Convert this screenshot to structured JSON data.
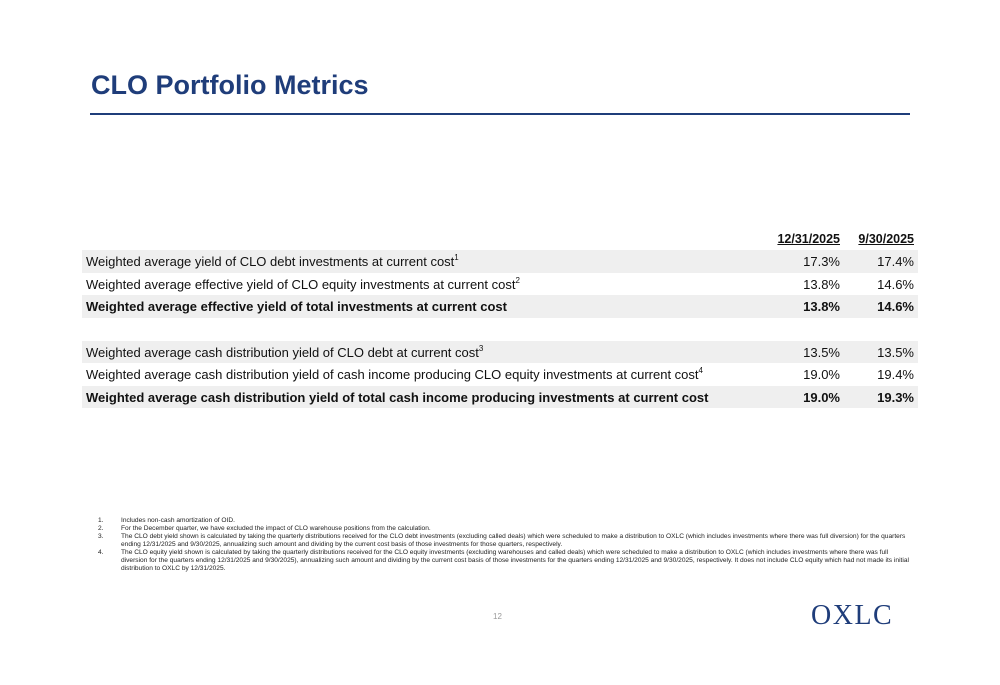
{
  "slide": {
    "title": "CLO Portfolio Metrics",
    "page_number": "12",
    "logo_text": "OXLC",
    "brand_color": "#1f3d7a"
  },
  "table": {
    "columns": [
      "12/31/2025",
      "9/30/2025"
    ],
    "group1": [
      {
        "label": "Weighted average yield of CLO debt investments at current cost",
        "footnote": "1",
        "v1": "17.3%",
        "v2": "17.4%"
      },
      {
        "label": "Weighted average effective yield of CLO equity investments at current cost",
        "footnote": "2",
        "v1": "13.8%",
        "v2": "14.6%"
      },
      {
        "label": "Weighted average effective yield of total investments at current cost",
        "footnote": "",
        "v1": "13.8%",
        "v2": "14.6%"
      }
    ],
    "group2": [
      {
        "label": "Weighted average cash distribution yield of CLO debt at current cost",
        "footnote": "3",
        "v1": "13.5%",
        "v2": "13.5%"
      },
      {
        "label": "Weighted average cash distribution yield of cash income producing CLO equity investments at current cost",
        "footnote": "4",
        "v1": "19.0%",
        "v2": "19.4%"
      },
      {
        "label": "Weighted average cash distribution yield of total cash income producing investments at current cost",
        "footnote": "",
        "v1": "19.0%",
        "v2": "19.3%"
      }
    ]
  },
  "footnotes": [
    {
      "num": "1.",
      "text": "Includes non-cash amortization of OID."
    },
    {
      "num": "2.",
      "text": "For the December quarter, we have excluded the impact of CLO warehouse positions from the calculation."
    },
    {
      "num": "3.",
      "text": "The CLO debt yield shown is calculated by taking the quarterly distributions received for the CLO debt investments (excluding called deals) which were scheduled to make a distribution to OXLC (which includes investments where there was full diversion) for the quarters ending 12/31/2025 and 9/30/2025, annualizing such amount and dividing by the current cost basis of those investments for those quarters, respectively."
    },
    {
      "num": "4.",
      "text": "The CLO equity yield shown is calculated by taking the quarterly distributions received for the CLO equity investments (excluding warehouses and called deals) which were scheduled to make a distribution to OXLC (which includes investments where there was full diversion for the quarters ending 12/31/2025 and 9/30/2025), annualizing such amount and dividing by the current cost basis of those investments for the quarters ending 12/31/2025 and 9/30/2025, respectively.  It does not include CLO equity which had not made its initial distribution to OXLC by 12/31/2025."
    }
  ]
}
